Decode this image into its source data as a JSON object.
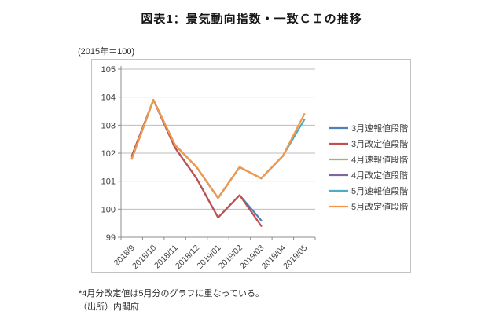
{
  "title": "図表1：景気動向指数・一致ＣＩの推移",
  "unit_note": "(2015年＝100)",
  "notes": {
    "overlap_note": "*4月分改定値は5月分のグラフに重なっている。",
    "source": "（出所）内閣府"
  },
  "chart_data": {
    "type": "line",
    "title": "図表1：景気動向指数・一致ＣＩの推移",
    "ylabel": "(2015年＝100)",
    "xlabel": "",
    "categories": [
      "2018/9",
      "2018/10",
      "2018/11",
      "2018/12",
      "2019/01",
      "2019/02",
      "2019/03",
      "2019/04",
      "2019/05"
    ],
    "series": [
      {
        "name": "3月速報値段階",
        "color": "#4F81BD",
        "values": [
          101.9,
          103.9,
          102.2,
          101.1,
          99.7,
          100.5,
          99.6,
          null,
          null
        ]
      },
      {
        "name": "3月改定値段階",
        "color": "#C0504D",
        "values": [
          101.9,
          103.9,
          102.2,
          101.1,
          99.7,
          100.5,
          99.4,
          null,
          null
        ]
      },
      {
        "name": "4月速報値段階",
        "color": "#9BBB59",
        "values": [
          101.8,
          103.9,
          102.3,
          101.5,
          100.4,
          101.5,
          101.1,
          101.9,
          null
        ]
      },
      {
        "name": "4月改定値段階",
        "color": "#8064A2",
        "values": [
          101.8,
          103.9,
          102.3,
          101.5,
          100.4,
          101.5,
          101.1,
          101.9,
          null
        ]
      },
      {
        "name": "5月速報値段階",
        "color": "#4BACC6",
        "values": [
          101.8,
          103.9,
          102.3,
          101.5,
          100.4,
          101.5,
          101.1,
          101.9,
          103.2
        ]
      },
      {
        "name": "5月改定値段階",
        "color": "#F79646",
        "values": [
          101.8,
          103.9,
          102.3,
          101.5,
          100.4,
          101.5,
          101.1,
          101.9,
          103.4
        ]
      }
    ],
    "ylim": [
      99,
      105
    ],
    "y_tick_step": 1,
    "y_tick_labels": [
      "99",
      "100",
      "101",
      "102",
      "103",
      "104",
      "105"
    ],
    "grid": "horizontal",
    "legend_position": "right-inside",
    "style_colors": {
      "gridline": "#bdbdbd",
      "axis": "#8c8c8c",
      "tick_label": "#3f3f3f",
      "frame_border": "#c3c3c3"
    }
  }
}
